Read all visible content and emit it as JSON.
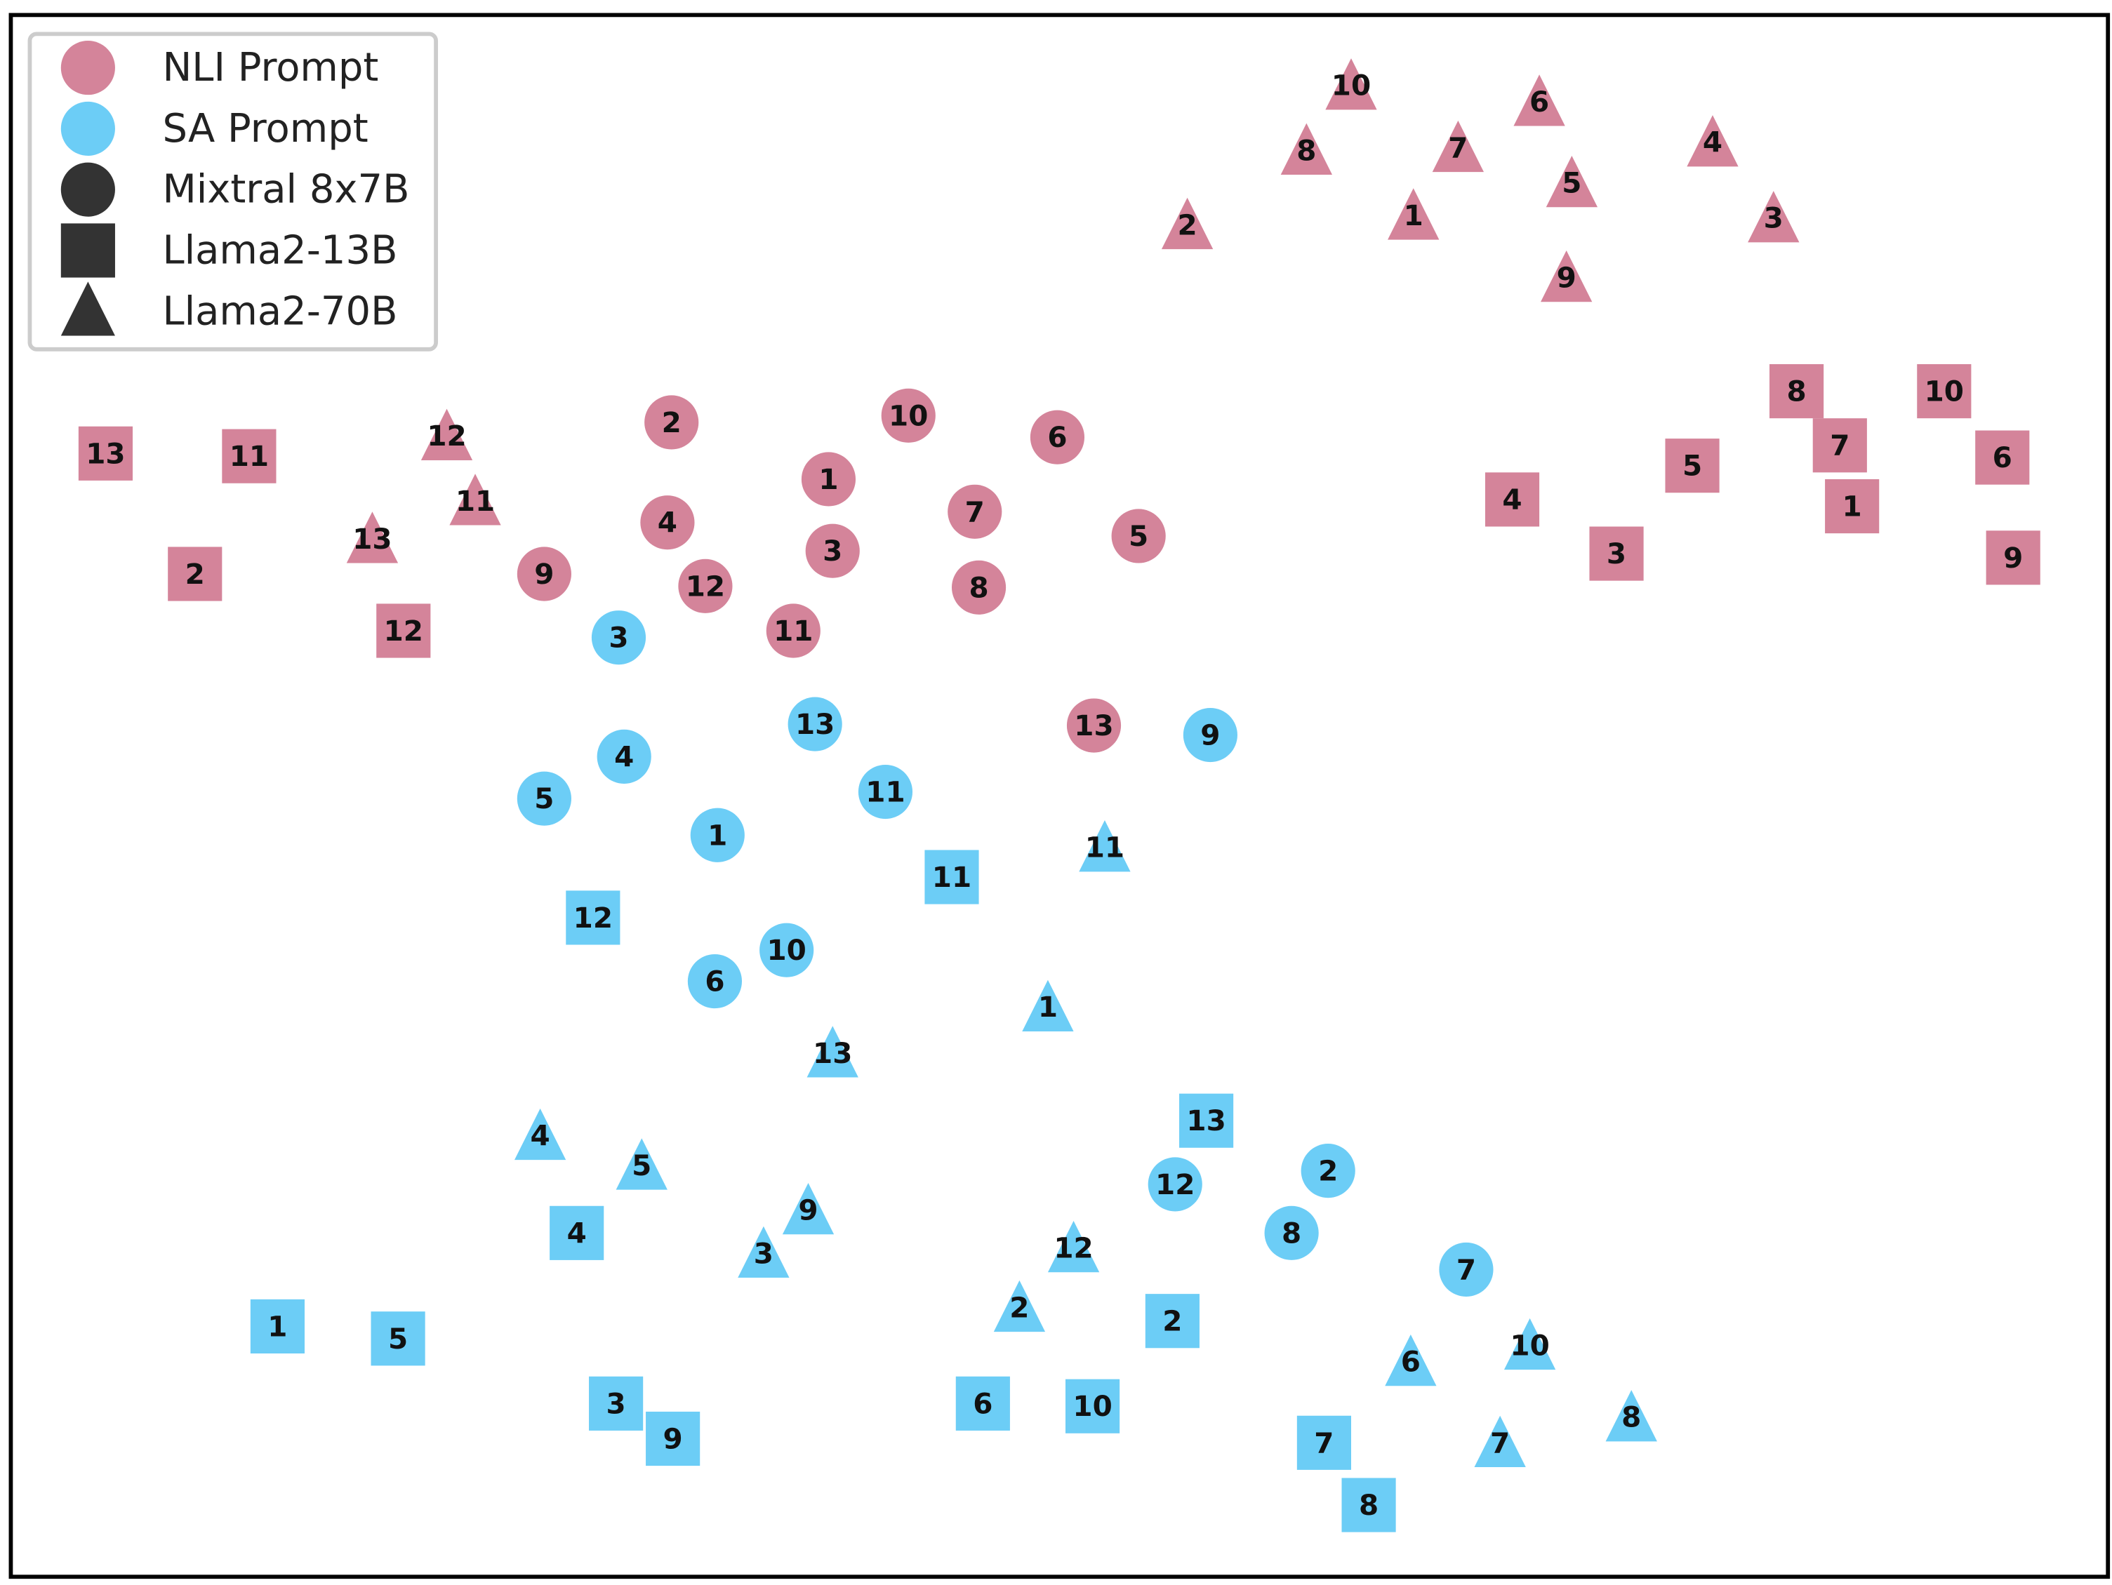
{
  "chart_data": {
    "type": "scatter",
    "title": "",
    "xlabel": "",
    "ylabel": "",
    "axes_visible": false,
    "grid": false,
    "xlim": [
      0,
      1560
    ],
    "ylim": [
      0,
      1152
    ],
    "colors": {
      "NLI Prompt": "#d4849a",
      "SA Prompt": "#6ccdf6",
      "legend_marker": "#333333"
    },
    "legend": {
      "placement": "top-left",
      "entries": [
        {
          "label": "NLI Prompt",
          "marker": "circle",
          "color": "#d4849a"
        },
        {
          "label": "SA Prompt",
          "marker": "circle",
          "color": "#6ccdf6"
        },
        {
          "label": "Mixtral 8x7B",
          "marker": "circle",
          "color": "#333333"
        },
        {
          "label": "Llama2-13B",
          "marker": "square",
          "color": "#333333"
        },
        {
          "label": "Llama2-70B",
          "marker": "triangle",
          "color": "#333333"
        }
      ]
    },
    "model_markers": {
      "Mixtral 8x7B": "circle",
      "Llama2-13B": "square",
      "Llama2-70B": "triangle"
    },
    "series": [
      {
        "prompt": "NLI Prompt",
        "model": "Mixtral 8x7B",
        "points": [
          {
            "label": "1",
            "x": 612,
            "y": 798
          },
          {
            "label": "2",
            "x": 496,
            "y": 840
          },
          {
            "label": "3",
            "x": 615,
            "y": 745
          },
          {
            "label": "4",
            "x": 493,
            "y": 766
          },
          {
            "label": "5",
            "x": 841,
            "y": 756
          },
          {
            "label": "6",
            "x": 781,
            "y": 829
          },
          {
            "label": "7",
            "x": 720,
            "y": 774
          },
          {
            "label": "8",
            "x": 723,
            "y": 718
          },
          {
            "label": "9",
            "x": 402,
            "y": 728
          },
          {
            "label": "10",
            "x": 671,
            "y": 845
          },
          {
            "label": "11",
            "x": 586,
            "y": 686
          },
          {
            "label": "12",
            "x": 521,
            "y": 719
          },
          {
            "label": "13",
            "x": 808,
            "y": 616
          }
        ]
      },
      {
        "prompt": "NLI Prompt",
        "model": "Llama2-13B",
        "points": [
          {
            "label": "1",
            "x": 1368,
            "y": 778
          },
          {
            "label": "2",
            "x": 144,
            "y": 728
          },
          {
            "label": "3",
            "x": 1194,
            "y": 743
          },
          {
            "label": "4",
            "x": 1117,
            "y": 783
          },
          {
            "label": "5",
            "x": 1250,
            "y": 808
          },
          {
            "label": "6",
            "x": 1479,
            "y": 814
          },
          {
            "label": "7",
            "x": 1359,
            "y": 823
          },
          {
            "label": "8",
            "x": 1327,
            "y": 863
          },
          {
            "label": "9",
            "x": 1487,
            "y": 740
          },
          {
            "label": "10",
            "x": 1436,
            "y": 863
          },
          {
            "label": "11",
            "x": 184,
            "y": 815
          },
          {
            "label": "12",
            "x": 298,
            "y": 686
          },
          {
            "label": "13",
            "x": 78,
            "y": 817
          }
        ]
      },
      {
        "prompt": "NLI Prompt",
        "model": "Llama2-70B",
        "points": [
          {
            "label": "1",
            "x": 1044,
            "y": 991
          },
          {
            "label": "2",
            "x": 877,
            "y": 984
          },
          {
            "label": "3",
            "x": 1310,
            "y": 989
          },
          {
            "label": "4",
            "x": 1265,
            "y": 1045
          },
          {
            "label": "5",
            "x": 1161,
            "y": 1015
          },
          {
            "label": "6",
            "x": 1137,
            "y": 1075
          },
          {
            "label": "7",
            "x": 1077,
            "y": 1041
          },
          {
            "label": "8",
            "x": 965,
            "y": 1039
          },
          {
            "label": "9",
            "x": 1157,
            "y": 945
          },
          {
            "label": "10",
            "x": 998,
            "y": 1087
          },
          {
            "label": "11",
            "x": 351,
            "y": 780
          },
          {
            "label": "12",
            "x": 330,
            "y": 828
          },
          {
            "label": "13",
            "x": 275,
            "y": 752
          }
        ]
      },
      {
        "prompt": "SA Prompt",
        "model": "Mixtral 8x7B",
        "points": [
          {
            "label": "1",
            "x": 530,
            "y": 535
          },
          {
            "label": "2",
            "x": 981,
            "y": 287
          },
          {
            "label": "3",
            "x": 457,
            "y": 681
          },
          {
            "label": "4",
            "x": 461,
            "y": 593
          },
          {
            "label": "5",
            "x": 402,
            "y": 562
          },
          {
            "label": "6",
            "x": 528,
            "y": 427
          },
          {
            "label": "7",
            "x": 1083,
            "y": 214
          },
          {
            "label": "8",
            "x": 954,
            "y": 241
          },
          {
            "label": "9",
            "x": 894,
            "y": 609
          },
          {
            "label": "10",
            "x": 581,
            "y": 450
          },
          {
            "label": "11",
            "x": 654,
            "y": 567
          },
          {
            "label": "12",
            "x": 868,
            "y": 277
          },
          {
            "label": "13",
            "x": 602,
            "y": 617
          }
        ]
      },
      {
        "prompt": "SA Prompt",
        "model": "Llama2-13B",
        "points": [
          {
            "label": "1",
            "x": 205,
            "y": 172
          },
          {
            "label": "2",
            "x": 866,
            "y": 176
          },
          {
            "label": "3",
            "x": 455,
            "y": 115
          },
          {
            "label": "4",
            "x": 426,
            "y": 241
          },
          {
            "label": "5",
            "x": 294,
            "y": 163
          },
          {
            "label": "6",
            "x": 726,
            "y": 115
          },
          {
            "label": "7",
            "x": 978,
            "y": 86
          },
          {
            "label": "8",
            "x": 1011,
            "y": 40
          },
          {
            "label": "9",
            "x": 497,
            "y": 89
          },
          {
            "label": "10",
            "x": 807,
            "y": 113
          },
          {
            "label": "11",
            "x": 703,
            "y": 504
          },
          {
            "label": "12",
            "x": 438,
            "y": 474
          },
          {
            "label": "13",
            "x": 891,
            "y": 324
          }
        ]
      },
      {
        "prompt": "SA Prompt",
        "model": "Llama2-70B",
        "points": [
          {
            "label": "1",
            "x": 774,
            "y": 406
          },
          {
            "label": "2",
            "x": 753,
            "y": 184
          },
          {
            "label": "3",
            "x": 564,
            "y": 224
          },
          {
            "label": "4",
            "x": 399,
            "y": 311
          },
          {
            "label": "5",
            "x": 474,
            "y": 289
          },
          {
            "label": "6",
            "x": 1042,
            "y": 144
          },
          {
            "label": "7",
            "x": 1108,
            "y": 84
          },
          {
            "label": "8",
            "x": 1205,
            "y": 103
          },
          {
            "label": "9",
            "x": 597,
            "y": 256
          },
          {
            "label": "10",
            "x": 1130,
            "y": 156
          },
          {
            "label": "11",
            "x": 816,
            "y": 524
          },
          {
            "label": "12",
            "x": 793,
            "y": 228
          },
          {
            "label": "13",
            "x": 615,
            "y": 372
          }
        ]
      }
    ]
  }
}
